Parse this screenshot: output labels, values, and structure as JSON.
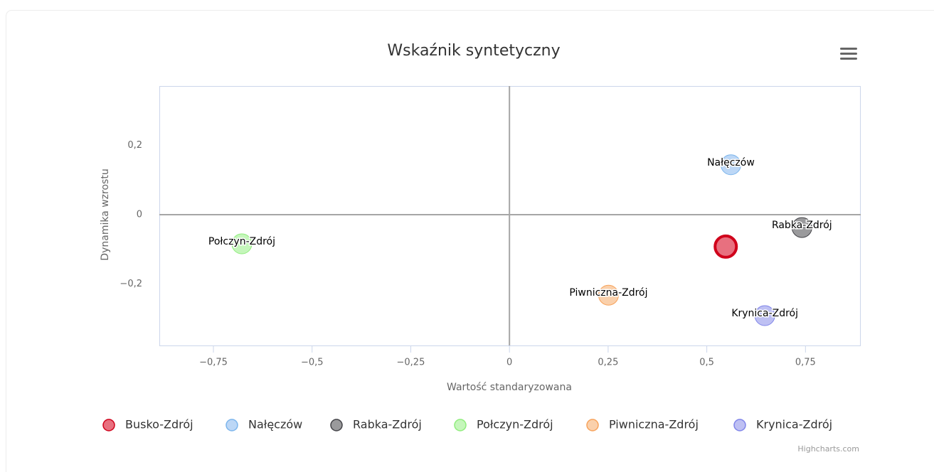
{
  "chart_data": {
    "type": "scatter",
    "title": "Wskaźnik syntetyczny",
    "x_label": "Wartość standaryzowana",
    "y_label": "Dynamika wzrostu",
    "xlim": [
      -0.887,
      0.89
    ],
    "ylim": [
      -0.377,
      0.371
    ],
    "xticks": [
      {
        "value": -0.75,
        "label": "−0,75"
      },
      {
        "value": -0.5,
        "label": "−0,5"
      },
      {
        "value": -0.25,
        "label": "−0,25"
      },
      0,
      {
        "value": 0.25,
        "label": "0,25"
      },
      {
        "value": 0.5,
        "label": "0,5"
      },
      {
        "value": 0.75,
        "label": "0,75"
      }
    ],
    "yticks": [
      {
        "value": -0.2,
        "label": "−0,2"
      },
      0,
      {
        "value": 0.2,
        "label": "0,2"
      }
    ],
    "xplotlines": [
      0
    ],
    "yplotlines": [
      0
    ],
    "series": [
      {
        "name": "Busko-Zdrój",
        "color": "#d0021b",
        "fill": "#e8707f",
        "x": [
          0.548
        ],
        "values": [
          -0.092
        ],
        "show_label": false
      },
      {
        "name": "Nałęczów",
        "color": "#7cb5ec",
        "fill": "#bcd7f6",
        "x": [
          0.561
        ],
        "values": [
          0.144
        ],
        "show_label": true
      },
      {
        "name": "Rabka-Zdrój",
        "color": "#434348",
        "fill": "#9a9a9c",
        "x": [
          0.741
        ],
        "values": [
          -0.037
        ],
        "show_label": true
      },
      {
        "name": "Połczyn-Zdrój",
        "color": "#90ed7d",
        "fill": "#c5f6bb",
        "x": [
          -0.678
        ],
        "values": [
          -0.084
        ],
        "show_label": true
      },
      {
        "name": "Piwniczna-Zdrój",
        "color": "#f7a35c",
        "fill": "#fad0ab",
        "x": [
          0.251
        ],
        "values": [
          -0.232
        ],
        "show_label": true
      },
      {
        "name": "Krynica-Zdrój",
        "color": "#8085e9",
        "fill": "#bec0f3",
        "x": [
          0.647
        ],
        "values": [
          -0.291
        ],
        "show_label": true
      }
    ],
    "credits": "Highcharts.com"
  }
}
